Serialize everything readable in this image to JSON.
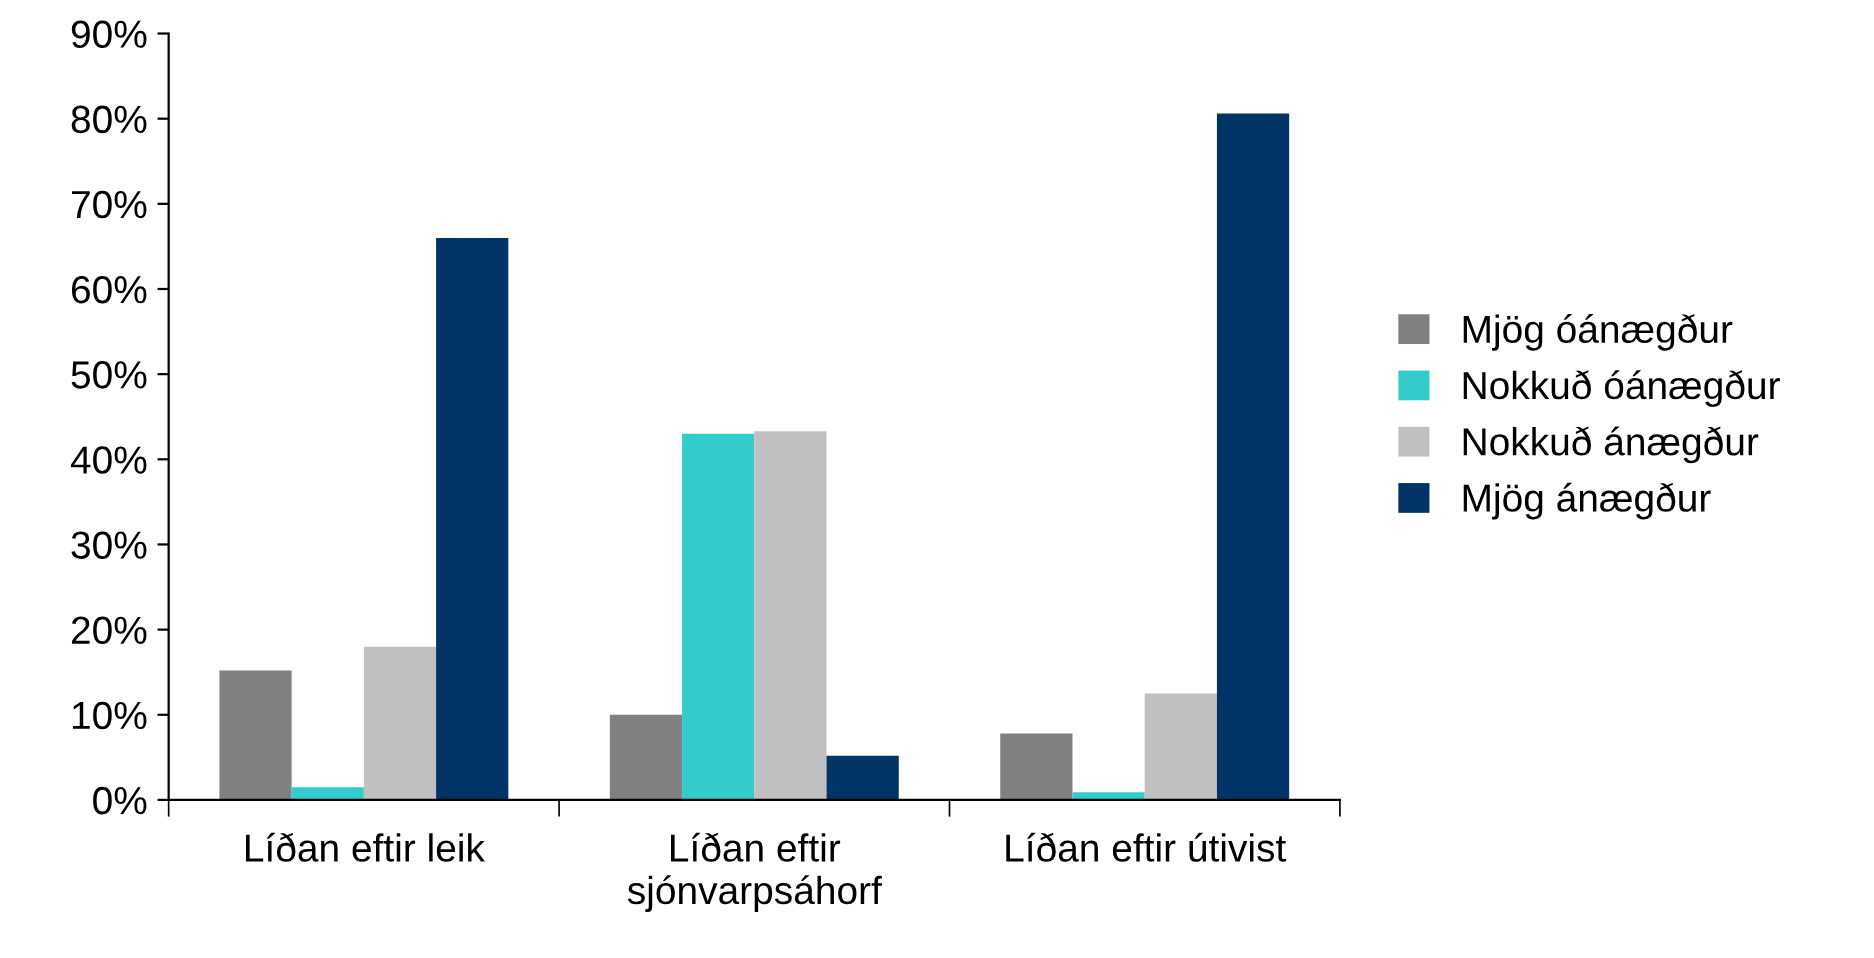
{
  "chart_data": {
    "type": "bar",
    "categories": [
      "Líðan eftir leik",
      "Líðan eftir\nsjónvarpsáhorf",
      "Líðan eftir útivist"
    ],
    "series": [
      {
        "name": "Mjög óánægður",
        "color": "#808080",
        "values": [
          15.2,
          10,
          7.8
        ]
      },
      {
        "name": "Nokkuð óánægður",
        "color": "#33cccc",
        "values": [
          1.5,
          43,
          0.9
        ]
      },
      {
        "name": "Nokkuð ánægður",
        "color": "#c0c0c0",
        "values": [
          18,
          43.3,
          12.5
        ]
      },
      {
        "name": "Mjög ánægður",
        "color": "#003366",
        "values": [
          66,
          5.2,
          80.6
        ]
      }
    ],
    "ylim": [
      0,
      90
    ],
    "yticks": [
      {
        "value": 0,
        "label": "0%"
      },
      {
        "value": 10,
        "label": "10%"
      },
      {
        "value": 20,
        "label": "20%"
      },
      {
        "value": 30,
        "label": "30%"
      },
      {
        "value": 40,
        "label": "40%"
      },
      {
        "value": 50,
        "label": "50%"
      },
      {
        "value": 60,
        "label": "60%"
      },
      {
        "value": 70,
        "label": "70%"
      },
      {
        "value": 80,
        "label": "80%"
      },
      {
        "value": 90,
        "label": "90%"
      }
    ],
    "grid": false,
    "legend": "right"
  }
}
